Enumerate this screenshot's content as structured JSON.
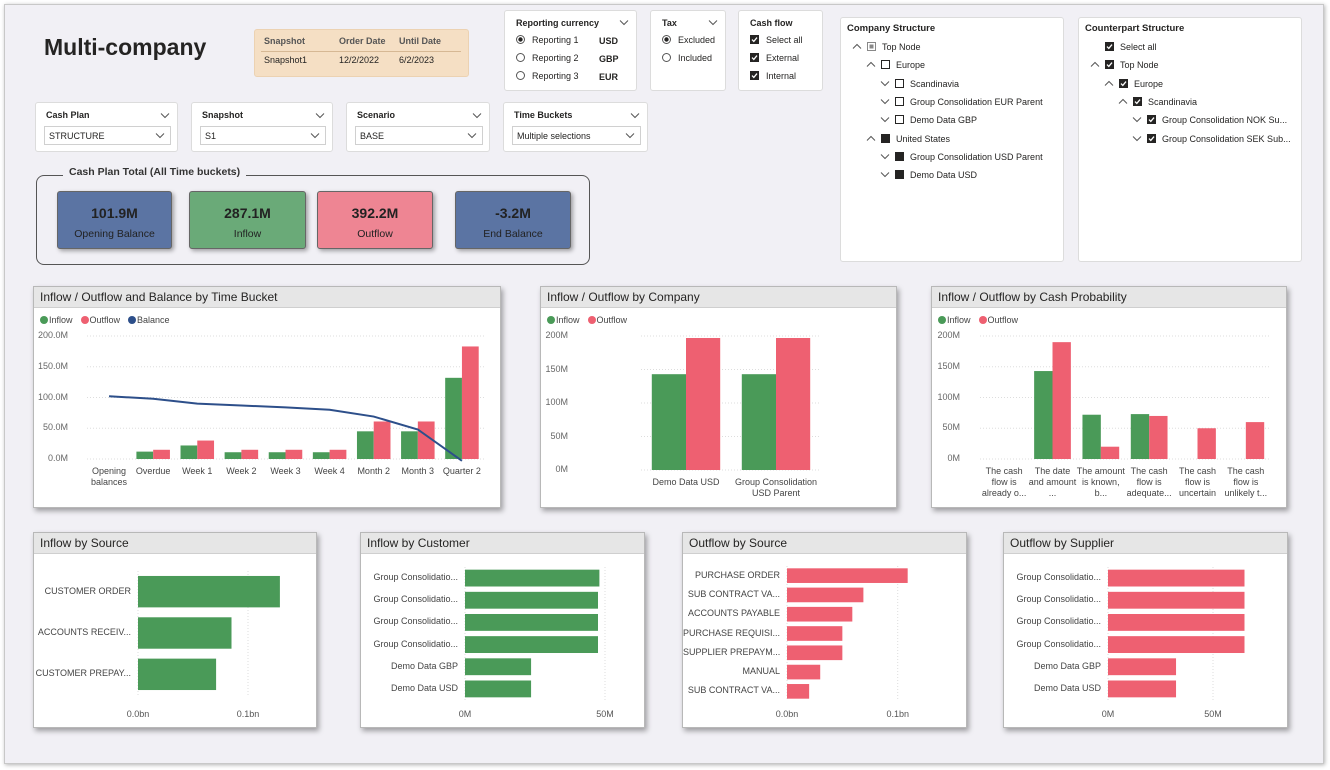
{
  "header": {
    "title": "Multi-company"
  },
  "snapshot_table": {
    "columns": [
      "Snapshot",
      "Order Date",
      "Until Date"
    ],
    "rows": [
      [
        "Snapshot1",
        "12/2/2022",
        "6/2/2023"
      ]
    ]
  },
  "filters": [
    {
      "title": "Reporting currency",
      "control": "radio",
      "options": [
        {
          "label": "Reporting 1",
          "code": "USD",
          "selected": true
        },
        {
          "label": "Reporting 2",
          "code": "GBP",
          "selected": false
        },
        {
          "label": "Reporting 3",
          "code": "EUR",
          "selected": false
        }
      ]
    },
    {
      "title": "Tax",
      "control": "radio",
      "options": [
        {
          "label": "Excluded",
          "selected": true
        },
        {
          "label": "Included",
          "selected": false
        }
      ]
    },
    {
      "title": "Cash flow",
      "control": "checkbox",
      "options": [
        {
          "label": "Select all",
          "selected": true
        },
        {
          "label": "External",
          "selected": true
        },
        {
          "label": "Internal",
          "selected": true
        }
      ]
    }
  ],
  "dropdowns": [
    {
      "title": "Cash Plan",
      "value": "STRUCTURE"
    },
    {
      "title": "Snapshot",
      "value": "S1"
    },
    {
      "title": "Scenario",
      "value": "BASE"
    },
    {
      "title": "Time Buckets",
      "value": "Multiple selections"
    }
  ],
  "kpi": {
    "title": "Cash Plan Total (All Time buckets)",
    "cards": [
      {
        "value": "101.9M",
        "label": "Opening Balance",
        "color": "#5b74a3"
      },
      {
        "value": "287.1M",
        "label": "Inflow",
        "color": "#6aaa78"
      },
      {
        "value": "392.2M",
        "label": "Outflow",
        "color": "#ee8593"
      },
      {
        "value": "-3.2M",
        "label": "End Balance",
        "color": "#5b74a3"
      }
    ]
  },
  "trees": [
    {
      "title": "Company Structure",
      "nodes": [
        {
          "label": "Top Node",
          "level": 0,
          "expanded": true,
          "state": "partial"
        },
        {
          "label": "Europe",
          "level": 1,
          "expanded": true,
          "state": "empty"
        },
        {
          "label": "Scandinavia",
          "level": 2,
          "expanded": false,
          "state": "empty"
        },
        {
          "label": "Group Consolidation EUR Parent",
          "level": 2,
          "expanded": false,
          "state": "empty"
        },
        {
          "label": "Demo Data GBP",
          "level": 2,
          "expanded": false,
          "state": "empty"
        },
        {
          "label": "United States",
          "level": 1,
          "expanded": true,
          "state": "filled"
        },
        {
          "label": "Group Consolidation USD Parent",
          "level": 2,
          "expanded": false,
          "state": "filled"
        },
        {
          "label": "Demo Data USD",
          "level": 2,
          "expanded": false,
          "state": "filled"
        }
      ]
    },
    {
      "title": "Counterpart Structure",
      "nodes": [
        {
          "label": "Select all",
          "level": 0,
          "state": "checked"
        },
        {
          "label": "Top Node",
          "level": 0,
          "expanded": true,
          "state": "checked"
        },
        {
          "label": "Europe",
          "level": 1,
          "expanded": true,
          "state": "checked"
        },
        {
          "label": "Scandinavia",
          "level": 2,
          "expanded": true,
          "state": "checked"
        },
        {
          "label": "Group Consolidation NOK Su...",
          "level": 3,
          "expanded": false,
          "state": "checked"
        },
        {
          "label": "Group Consolidation SEK Sub...",
          "level": 3,
          "expanded": false,
          "state": "checked"
        }
      ]
    }
  ],
  "chart_data": [
    {
      "type": "bar",
      "title": "Inflow / Outflow and Balance by Time Bucket",
      "categories": [
        "Opening balances",
        "Overdue",
        "Week 1",
        "Week 2",
        "Week 3",
        "Week 4",
        "Month 2",
        "Month 3",
        "Quarter 2"
      ],
      "series": [
        {
          "name": "Inflow",
          "color": "#4a9a58",
          "values": [
            null,
            12,
            22,
            11,
            11,
            11,
            45,
            45,
            132
          ]
        },
        {
          "name": "Outflow",
          "color": "#ee6071",
          "values": [
            null,
            15,
            30,
            15,
            15,
            15,
            61,
            61,
            183
          ]
        },
        {
          "name": "Balance",
          "type": "line",
          "color": "#2d4f8a",
          "values": [
            102,
            98,
            90,
            87,
            84,
            80,
            69,
            48,
            -3
          ]
        }
      ],
      "ylim": [
        0,
        200
      ],
      "yticks": [
        {
          "value": 0,
          "label": "0.0M"
        },
        {
          "value": 50,
          "label": "50.0M"
        },
        {
          "value": 100,
          "label": "100.0M"
        },
        {
          "value": 150,
          "label": "150.0M"
        },
        {
          "value": 200,
          "label": "200.0M"
        }
      ],
      "grid": true,
      "legend": "top-left"
    },
    {
      "type": "bar",
      "title": "Inflow / Outflow by Company",
      "categories": [
        "Demo Data USD",
        "Group Consolidation USD Parent"
      ],
      "series": [
        {
          "name": "Inflow",
          "color": "#4a9a58",
          "values": [
            143,
            143
          ]
        },
        {
          "name": "Outflow",
          "color": "#ee6071",
          "values": [
            197,
            197
          ]
        }
      ],
      "ylim": [
        0,
        200
      ],
      "yticks": [
        {
          "value": 0,
          "label": "0M"
        },
        {
          "value": 50,
          "label": "50M"
        },
        {
          "value": 100,
          "label": "100M"
        },
        {
          "value": 150,
          "label": "150M"
        },
        {
          "value": 200,
          "label": "200M"
        }
      ],
      "grid": true,
      "legend": "top-left"
    },
    {
      "type": "bar",
      "title": "Inflow / Outflow by Cash Probability",
      "categories": [
        "The cash flow is already o...",
        "The date and amount ...",
        "The amount is known, b...",
        "The cash flow is adequate...",
        "The cash flow is uncertain",
        "The cash flow is unlikely t..."
      ],
      "series": [
        {
          "name": "Inflow",
          "color": "#4a9a58",
          "values": [
            null,
            143,
            72,
            73,
            null,
            null
          ]
        },
        {
          "name": "Outflow",
          "color": "#ee6071",
          "values": [
            null,
            190,
            20,
            70,
            50,
            60
          ]
        }
      ],
      "ylim": [
        0,
        200
      ],
      "yticks": [
        {
          "value": 0,
          "label": "0M"
        },
        {
          "value": 50,
          "label": "50M"
        },
        {
          "value": 100,
          "label": "100M"
        },
        {
          "value": 150,
          "label": "150M"
        },
        {
          "value": 200,
          "label": "200M"
        }
      ],
      "grid": true,
      "legend": "top-left"
    },
    {
      "type": "barh",
      "title": "Inflow by Source",
      "categories": [
        "CUSTOMER ORDER",
        "ACCOUNTS RECEIV...",
        "CUSTOMER PREPAY..."
      ],
      "values": [
        0.129,
        0.085,
        0.071
      ],
      "color": "#4a9a58",
      "xlim": [
        0,
        0.14
      ],
      "xticks": [
        {
          "value": 0,
          "label": "0.0bn"
        },
        {
          "value": 0.1,
          "label": "0.1bn"
        }
      ],
      "grid": true
    },
    {
      "type": "barh",
      "title": "Inflow by Customer",
      "categories": [
        "Group Consolidatio...",
        "Group Consolidatio...",
        "Group Consolidatio...",
        "Group Consolidatio...",
        "Demo Data GBP",
        "Demo Data USD"
      ],
      "values": [
        48,
        47.5,
        47.5,
        47.5,
        23.6,
        23.6
      ],
      "color": "#4a9a58",
      "xlim": [
        0,
        55
      ],
      "xticks": [
        {
          "value": 0,
          "label": "0M"
        },
        {
          "value": 50,
          "label": "50M"
        }
      ],
      "grid": true
    },
    {
      "type": "barh",
      "title": "Outflow by Source",
      "categories": [
        "PURCHASE ORDER",
        "SUB CONTRACT VA...",
        "ACCOUNTS PAYABLE",
        "PURCHASE REQUISI...",
        "SUPPLIER PREPAYM...",
        "MANUAL",
        "SUB CONTRACT VA..."
      ],
      "values": [
        0.109,
        0.069,
        0.059,
        0.05,
        0.05,
        0.03,
        0.02
      ],
      "color": "#ee6071",
      "xlim": [
        0,
        0.14
      ],
      "xticks": [
        {
          "value": 0,
          "label": "0.0bn"
        },
        {
          "value": 0.1,
          "label": "0.1bn"
        }
      ],
      "grid": true
    },
    {
      "type": "barh",
      "title": "Outflow by Supplier",
      "categories": [
        "Group Consolidatio...",
        "Group Consolidatio...",
        "Group Consolidatio...",
        "Group Consolidatio...",
        "Demo Data GBP",
        "Demo Data USD"
      ],
      "values": [
        65,
        65,
        65,
        65,
        32.4,
        32.4
      ],
      "color": "#ee6071",
      "xlim": [
        0,
        70
      ],
      "xticks": [
        {
          "value": 0,
          "label": "0M"
        },
        {
          "value": 50,
          "label": "50M"
        }
      ],
      "grid": true
    }
  ]
}
